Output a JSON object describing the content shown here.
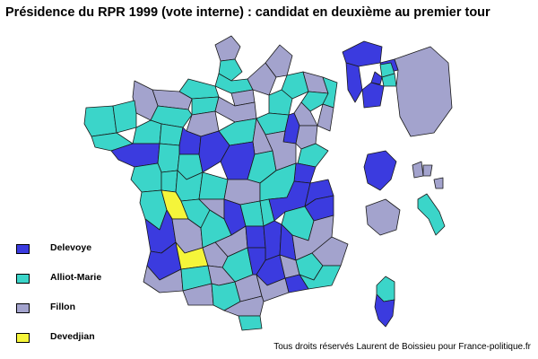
{
  "title": "Présidence du RPR 1999 (vote interne) : candidat en deuxième au premier tour",
  "colors": {
    "Delevoye": "#3b3bdf",
    "Alliot-Marie": "#3bd5c9",
    "Fillon": "#a3a3cd",
    "Devedjian": "#f5f53a",
    "border": "#1a1a1a"
  },
  "legend": [
    {
      "label": "Delevoye",
      "color": "#3b3bdf"
    },
    {
      "label": "Alliot-Marie",
      "color": "#3bd5c9"
    },
    {
      "label": "Fillon",
      "color": "#a3a3cd"
    },
    {
      "label": "Devedjian",
      "color": "#f5f53a"
    }
  ],
  "credit": "Tous droits réservés Laurent de Boissieu pour France-politique.fr"
}
